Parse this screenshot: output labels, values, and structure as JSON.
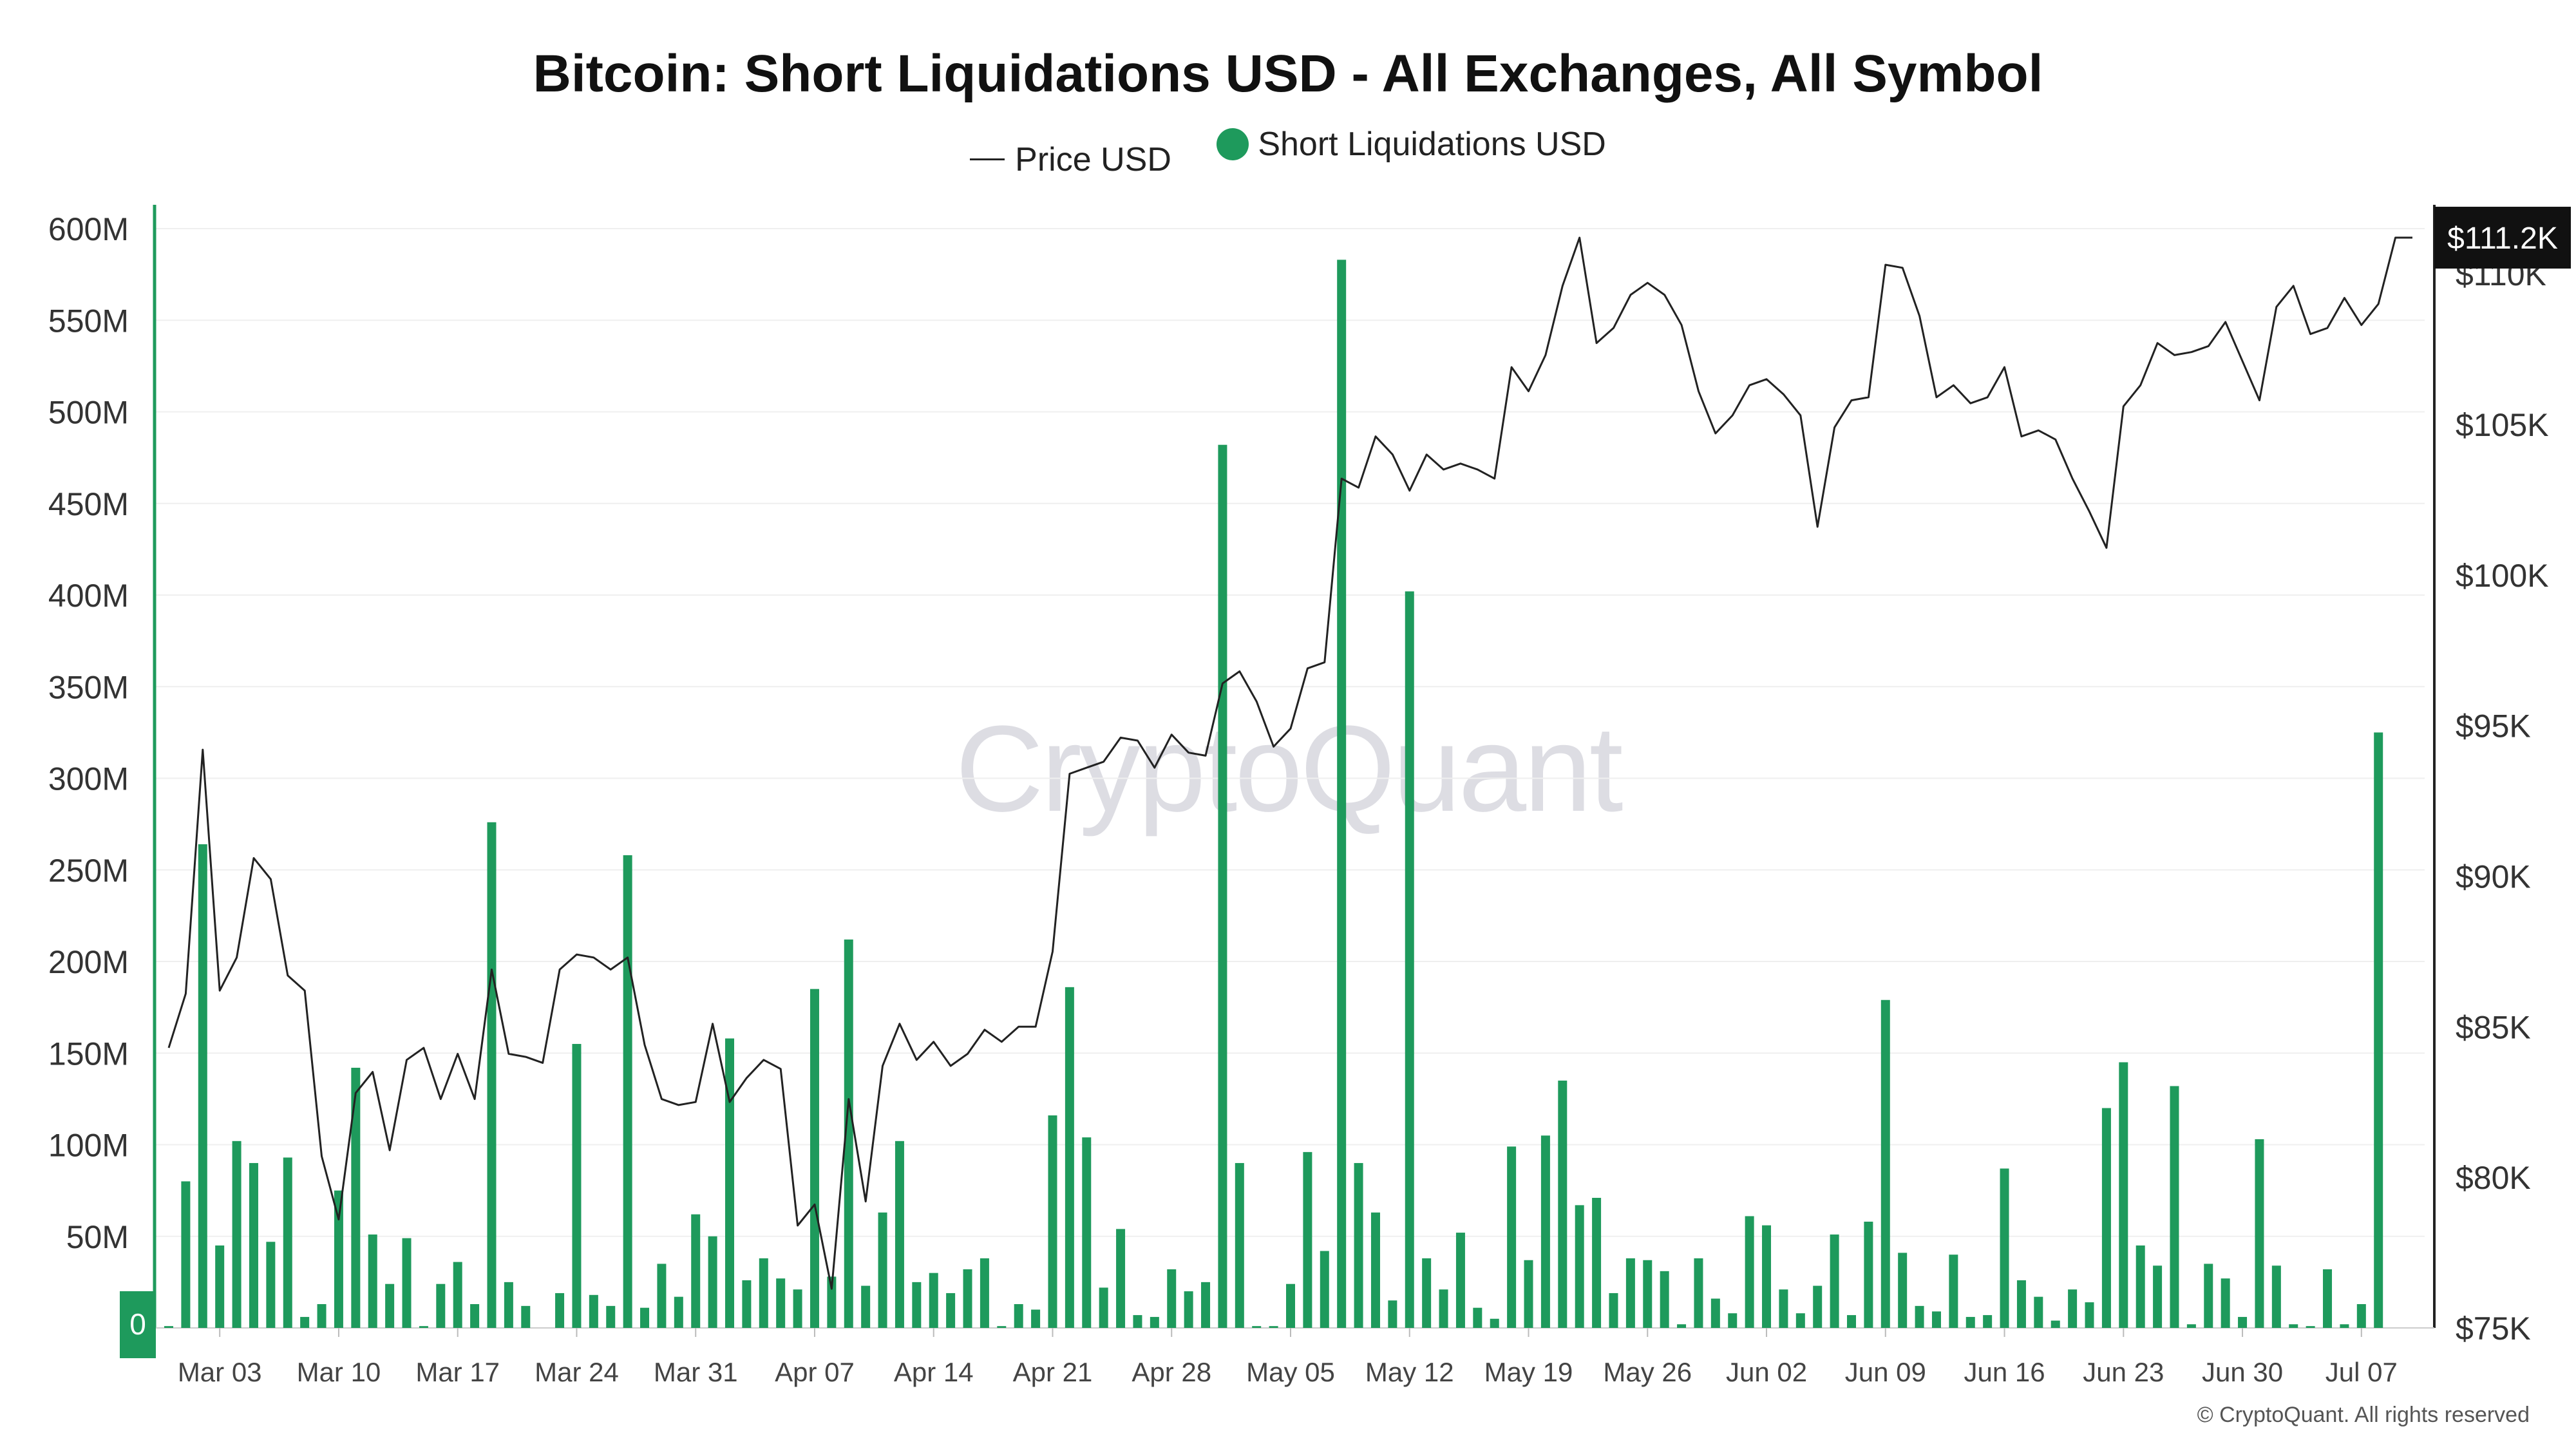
{
  "chart_data": {
    "type": "bar",
    "title": "Bitcoin: Short Liquidations USD - All Exchanges, All Symbol",
    "legend": [
      {
        "label": "Price USD",
        "marker": "line",
        "color": "#222222"
      },
      {
        "label": "Short Liquidations USD",
        "marker": "dot",
        "color": "#1e9a5c"
      }
    ],
    "watermark": "CryptoQuant",
    "copyright": "© CryptoQuant. All rights reserved",
    "start_date": "2025-02-28",
    "end_date": "2025-07-10",
    "y_left": {
      "ticks": [
        0,
        50,
        100,
        150,
        200,
        250,
        300,
        350,
        400,
        450,
        500,
        550,
        600
      ],
      "tick_labels": [
        "0",
        "50M",
        "100M",
        "150M",
        "200M",
        "250M",
        "300M",
        "350M",
        "400M",
        "450M",
        "500M",
        "550M",
        "600M"
      ],
      "range": [
        0,
        600
      ],
      "unit": "M USD"
    },
    "y_right": {
      "ticks": [
        75,
        80,
        85,
        90,
        95,
        100,
        105,
        110
      ],
      "tick_labels": [
        "$75K",
        "$80K",
        "$85K",
        "$90K",
        "$95K",
        "$100K",
        "$105K",
        "$110K"
      ],
      "range": [
        75,
        111.5
      ],
      "unit": "K USD"
    },
    "x_ticks": [
      "Mar 03",
      "Mar 10",
      "Mar 17",
      "Mar 24",
      "Mar 31",
      "Apr 07",
      "Apr 14",
      "Apr 21",
      "Apr 28",
      "May 05",
      "May 12",
      "May 19",
      "May 26",
      "Jun 02",
      "Jun 09",
      "Jun 16",
      "Jun 23",
      "Jun 30",
      "Jul 07"
    ],
    "current_price_label": "$111.2K",
    "y_left_zero_label": "0",
    "colors": {
      "bar": "#1e9a5c",
      "price_line": "#222222",
      "left_axis": "#1e9a5c",
      "right_axis": "#222222",
      "grid": "#efefef",
      "badge_bg": "#111111",
      "badge_text": "#ffffff"
    },
    "series": [
      {
        "name": "Short Liquidations USD",
        "type": "bar",
        "unit": "M USD",
        "values": [
          1,
          80,
          264,
          45,
          102,
          90,
          47,
          93,
          6,
          13,
          75,
          142,
          51,
          24,
          49,
          1,
          24,
          36,
          13,
          276,
          25,
          12,
          0,
          19,
          155,
          18,
          12,
          258,
          11,
          35,
          17,
          62,
          50,
          158,
          26,
          38,
          27,
          21,
          185,
          28,
          212,
          23,
          63,
          102,
          25,
          30,
          19,
          32,
          38,
          1,
          13,
          10,
          116,
          186,
          104,
          22,
          54,
          7,
          6,
          32,
          20,
          25,
          482,
          90,
          1,
          1,
          24,
          96,
          42,
          583,
          90,
          63,
          15,
          402,
          38,
          21,
          52,
          11,
          5,
          99,
          37,
          105,
          135,
          67,
          71,
          19,
          38,
          37,
          31,
          2,
          38,
          16,
          8,
          61,
          56,
          21,
          8,
          23,
          51,
          7,
          58,
          179,
          41,
          12,
          9,
          40,
          6,
          7,
          87,
          26,
          17,
          4,
          21,
          14,
          120,
          145,
          45,
          34,
          132,
          2,
          35,
          27,
          6,
          103,
          34,
          2,
          1,
          32,
          2,
          13,
          325
        ]
      },
      {
        "name": "Price USD",
        "type": "line",
        "unit": "K USD",
        "values": [
          84.3,
          86.1,
          94.2,
          86.2,
          87.3,
          90.6,
          89.9,
          86.7,
          86.2,
          80.7,
          78.6,
          82.8,
          83.5,
          80.9,
          83.9,
          84.3,
          82.6,
          84.1,
          82.6,
          86.9,
          84.1,
          84.0,
          83.8,
          86.9,
          87.4,
          87.3,
          86.9,
          87.3,
          84.4,
          82.6,
          82.4,
          82.5,
          85.1,
          82.5,
          83.3,
          83.9,
          83.6,
          78.4,
          79.1,
          76.3,
          82.6,
          79.2,
          83.7,
          85.1,
          83.9,
          84.5,
          83.7,
          84.1,
          84.9,
          84.5,
          85.0,
          85.0,
          87.5,
          93.4,
          93.6,
          93.8,
          94.6,
          94.5,
          93.6,
          94.7,
          94.1,
          94.0,
          96.4,
          96.8,
          95.8,
          94.3,
          94.9,
          96.9,
          97.1,
          103.2,
          102.9,
          104.6,
          104.0,
          102.8,
          104.0,
          103.5,
          103.7,
          103.5,
          103.2,
          106.9,
          106.1,
          107.3,
          109.6,
          111.2,
          107.7,
          108.2,
          109.3,
          109.7,
          109.3,
          108.3,
          106.1,
          104.7,
          105.3,
          106.3,
          106.5,
          106.0,
          105.3,
          101.6,
          104.9,
          105.8,
          105.9,
          110.3,
          110.2,
          108.6,
          105.9,
          106.3,
          105.7,
          105.9,
          106.9,
          104.6,
          104.8,
          104.5,
          103.2,
          102.1,
          100.9,
          105.6,
          106.3,
          107.7,
          107.3,
          107.4,
          107.6,
          108.4,
          107.1,
          105.8,
          108.9,
          109.6,
          108.0,
          108.2,
          109.2,
          108.3,
          109.0,
          111.2,
          111.2
        ]
      }
    ]
  }
}
